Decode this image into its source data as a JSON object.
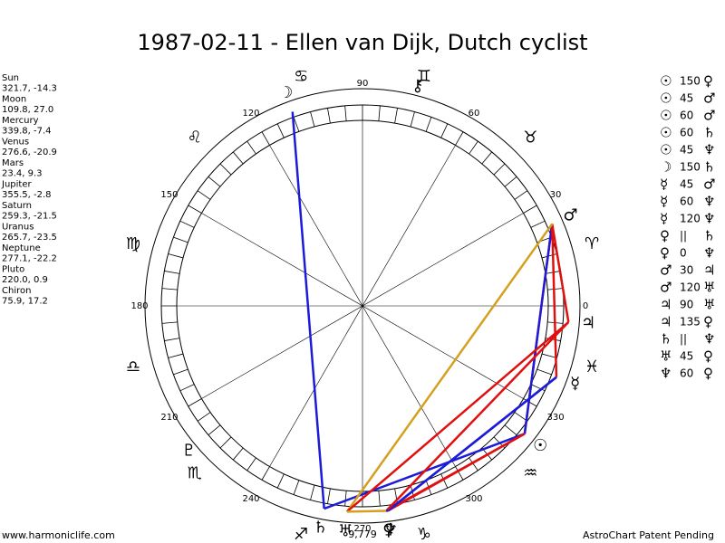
{
  "title": "1987-02-11 - Ellen van Dijk, Dutch cyclist",
  "planets": [
    {
      "name": "Sun",
      "glyph": "☉",
      "position": "321.7, -14.3"
    },
    {
      "name": "Moon",
      "glyph": "☽",
      "position": "109.8, 27.0"
    },
    {
      "name": "Mercury",
      "glyph": "☿",
      "position": "339.8, -7.4"
    },
    {
      "name": "Venus",
      "glyph": "♀",
      "position": "276.6, -20.9"
    },
    {
      "name": "Mars",
      "glyph": "♂",
      "position": "23.4, 9.3"
    },
    {
      "name": "Jupiter",
      "glyph": "♃",
      "position": "355.5, -2.8"
    },
    {
      "name": "Saturn",
      "glyph": "♄",
      "position": "259.3, -21.5"
    },
    {
      "name": "Uranus",
      "glyph": "♅",
      "position": "265.7, -23.5"
    },
    {
      "name": "Neptune",
      "glyph": "♆",
      "position": "277.1, -22.2"
    },
    {
      "name": "Pluto",
      "glyph": "♇",
      "position": "220.0, 0.9"
    },
    {
      "name": "Chiron",
      "glyph": "⚷",
      "position": "75.9, 17.2"
    }
  ],
  "aspects": [
    {
      "from": "☉",
      "aspect": "150",
      "to": "♀",
      "color": "#e01010"
    },
    {
      "from": "☉",
      "aspect": "45",
      "to": "♂",
      "color": "#e01010"
    },
    {
      "from": "☉",
      "aspect": "60",
      "to": "♂",
      "color": "#1c1cd8"
    },
    {
      "from": "☉",
      "aspect": "60",
      "to": "♄",
      "color": "#1c1cd8"
    },
    {
      "from": "☉",
      "aspect": "45",
      "to": "♆",
      "color": "#e01010"
    },
    {
      "from": "☽",
      "aspect": "150",
      "to": "♄",
      "color": "#1c1cd8"
    },
    {
      "from": "☿",
      "aspect": "45",
      "to": "♂",
      "color": "#e01010"
    },
    {
      "from": "☿",
      "aspect": "60",
      "to": "♆",
      "color": "#1c1cd8"
    },
    {
      "from": "☿",
      "aspect": "120",
      "to": "♆",
      "color": "#1c1cd8"
    },
    {
      "from": "♀",
      "aspect": "||",
      "to": "♄"
    },
    {
      "from": "♀",
      "aspect": "0",
      "to": "♆",
      "color": "#d4a020"
    },
    {
      "from": "♂",
      "aspect": "30",
      "to": "♃",
      "color": "#e01010"
    },
    {
      "from": "♂",
      "aspect": "120",
      "to": "♅",
      "color": "#d4a020"
    },
    {
      "from": "♃",
      "aspect": "90",
      "to": "♅",
      "color": "#e01010"
    },
    {
      "from": "♃",
      "aspect": "135",
      "to": "♀",
      "color": "#e01010"
    },
    {
      "from": "♄",
      "aspect": "||",
      "to": "♆"
    },
    {
      "from": "♅",
      "aspect": "45",
      "to": "♀",
      "color": "#d4a020"
    },
    {
      "from": "♆",
      "aspect": "60",
      "to": "♀",
      "color": "#1c1cd8"
    }
  ],
  "signs": [
    "♈",
    "♉",
    "♊",
    "♋",
    "♌",
    "♍",
    "♎",
    "♏",
    "♐",
    "♑",
    "♒",
    "♓"
  ],
  "ring_labels": [
    0,
    30,
    60,
    90,
    120,
    150,
    180,
    210,
    240,
    270,
    300,
    330
  ],
  "day_count": "9,779",
  "footer_left": "www.harmoniclife.com",
  "footer_right": "AstroChart Patent Pending"
}
